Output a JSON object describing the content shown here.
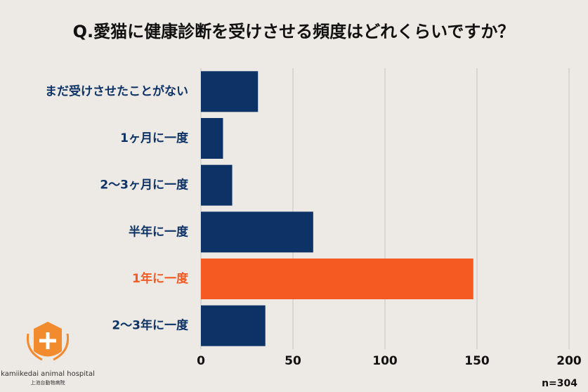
{
  "chart_data": {
    "type": "bar",
    "orientation": "horizontal",
    "title": "Q.愛猫に健康診断を受けさせる頻度はどれくらいですか？",
    "categories": [
      "まだ受けさせたことがない",
      "1ヶ月に一度",
      "2〜3ヶ月に一度",
      "半年に一度",
      "1年に一度",
      "2〜3年に一度"
    ],
    "values": [
      31,
      12,
      17,
      61,
      148,
      35
    ],
    "colors": [
      "#0d3366",
      "#0d3366",
      "#0d3366",
      "#0d3366",
      "#f55a22",
      "#0d3366"
    ],
    "xlim": [
      0,
      200
    ],
    "xticks": [
      0,
      50,
      100,
      150,
      200
    ],
    "grid": true,
    "note": "n=304",
    "logo": {
      "name": "kamiikedai animal hospital",
      "subname": "上池台動物病院"
    }
  }
}
